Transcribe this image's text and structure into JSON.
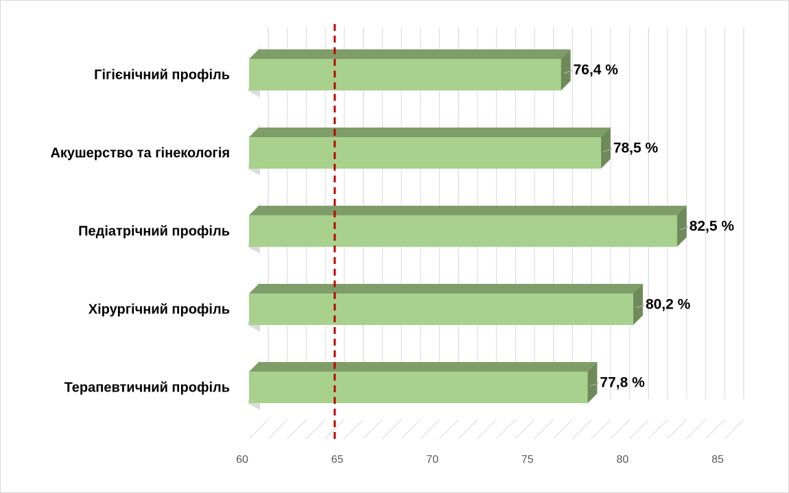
{
  "chart_data": {
    "type": "bar",
    "orientation": "horizontal",
    "three_d": true,
    "categories": [
      "Гігієнічний профіль",
      "Акушерство та гінекологія",
      "Педіатрічний профіль",
      "Хірургічний профіль",
      "Терапевтичний профіль"
    ],
    "values": [
      76.4,
      78.5,
      82.5,
      80.2,
      77.8
    ],
    "value_labels": [
      "76,4 %",
      "78,5 %",
      "82,5 %",
      "80,2 %",
      "77,8 %"
    ],
    "x_ticks": [
      60,
      65,
      70,
      75,
      80,
      85
    ],
    "x_tick_labels": [
      "60",
      "65",
      "70",
      "75",
      "80",
      "85"
    ],
    "xlim": [
      60,
      85
    ],
    "grid": "vertical",
    "reference_line": {
      "value": 64,
      "style": "dashed",
      "color": "#c00000"
    },
    "colors": {
      "bar_front": "#a9d18e",
      "bar_top": "#7f9d68",
      "bar_side": "#6e8a59",
      "grid": "#d9d9d9"
    },
    "legend": "none"
  }
}
